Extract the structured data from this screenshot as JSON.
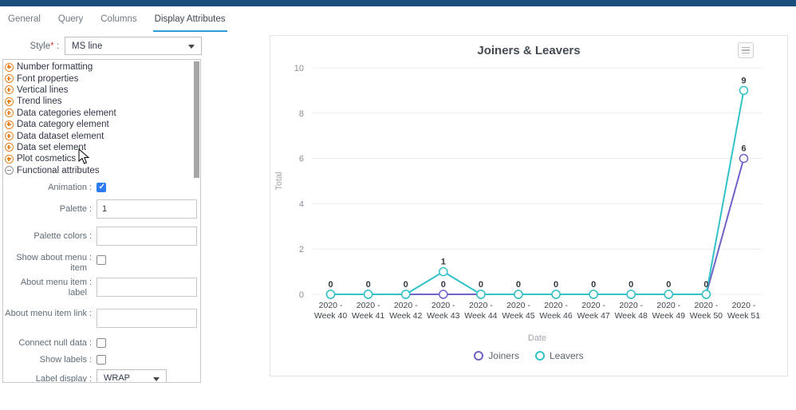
{
  "colors": {
    "topbar": "#1a4f7d",
    "tab_active_underline": "#2e9bd6",
    "tree_icon_orange": "#e8821e",
    "checkbox_checked": "#2e7bf6",
    "joiners_line": "#6f63c8",
    "leavers_line": "#33c3c7"
  },
  "tabs": {
    "items": [
      {
        "label": "General",
        "active": false
      },
      {
        "label": "Query",
        "active": false
      },
      {
        "label": "Columns",
        "active": false
      },
      {
        "label": "Display Attributes",
        "active": true
      }
    ]
  },
  "style_field": {
    "label": "Style",
    "required_mark": "*",
    "value": "MS line"
  },
  "attributes_panel": {
    "tree_items": [
      {
        "label": "Number formatting",
        "state": "collapsed"
      },
      {
        "label": "Font properties",
        "state": "collapsed"
      },
      {
        "label": "Vertical lines",
        "state": "collapsed"
      },
      {
        "label": "Trend lines",
        "state": "collapsed"
      },
      {
        "label": "Data categories element",
        "state": "collapsed"
      },
      {
        "label": "Data category element",
        "state": "collapsed"
      },
      {
        "label": "Data dataset element",
        "state": "collapsed"
      },
      {
        "label": "Data set element",
        "state": "collapsed"
      },
      {
        "label": "Plot cosmetics",
        "state": "collapsed"
      },
      {
        "label": "Functional attributes",
        "state": "expanded"
      }
    ],
    "animation": {
      "label": "Animation",
      "checked": true
    },
    "palette": {
      "label": "Palette",
      "value": "1",
      "placeholder": ""
    },
    "palette_colors": {
      "label": "Palette colors",
      "value": "",
      "placeholder": ""
    },
    "show_about_menu_item": {
      "label": "Show about menu item",
      "checked": false
    },
    "about_menu_item_label": {
      "label": "About menu item label",
      "value": "",
      "placeholder": ""
    },
    "about_menu_item_link": {
      "label": "About menu item link",
      "value": "",
      "placeholder": ""
    },
    "connect_null_data": {
      "label": "Connect null data",
      "checked": false
    },
    "show_labels": {
      "label": "Show labels",
      "checked": false
    },
    "label_display": {
      "label": "Label display",
      "value": "WRAP"
    }
  },
  "chart_data": {
    "type": "line",
    "title": "Joiners & Leavers",
    "xlabel": "Date",
    "ylabel": "Total",
    "ylim": [
      0,
      10
    ],
    "yticks": [
      0,
      2,
      4,
      6,
      8,
      10
    ],
    "grid": true,
    "legend_position": "bottom",
    "point_labels_shown": true,
    "categories": [
      "2020 - Week 40",
      "2020 - Week 41",
      "2020 - Week 42",
      "2020 - Week 43",
      "2020 - Week 44",
      "2020 - Week 45",
      "2020 - Week 46",
      "2020 - Week 47",
      "2020 - Week 48",
      "2020 - Week 49",
      "2020 - Week 50",
      "2020 - Week 51"
    ],
    "series": [
      {
        "name": "Joiners",
        "color": "#6f63c8",
        "values": [
          0,
          0,
          0,
          0,
          0,
          0,
          0,
          0,
          0,
          0,
          0,
          6
        ]
      },
      {
        "name": "Leavers",
        "color": "#33c3c7",
        "values": [
          0,
          0,
          0,
          1,
          0,
          0,
          0,
          0,
          0,
          0,
          0,
          9
        ]
      }
    ]
  }
}
